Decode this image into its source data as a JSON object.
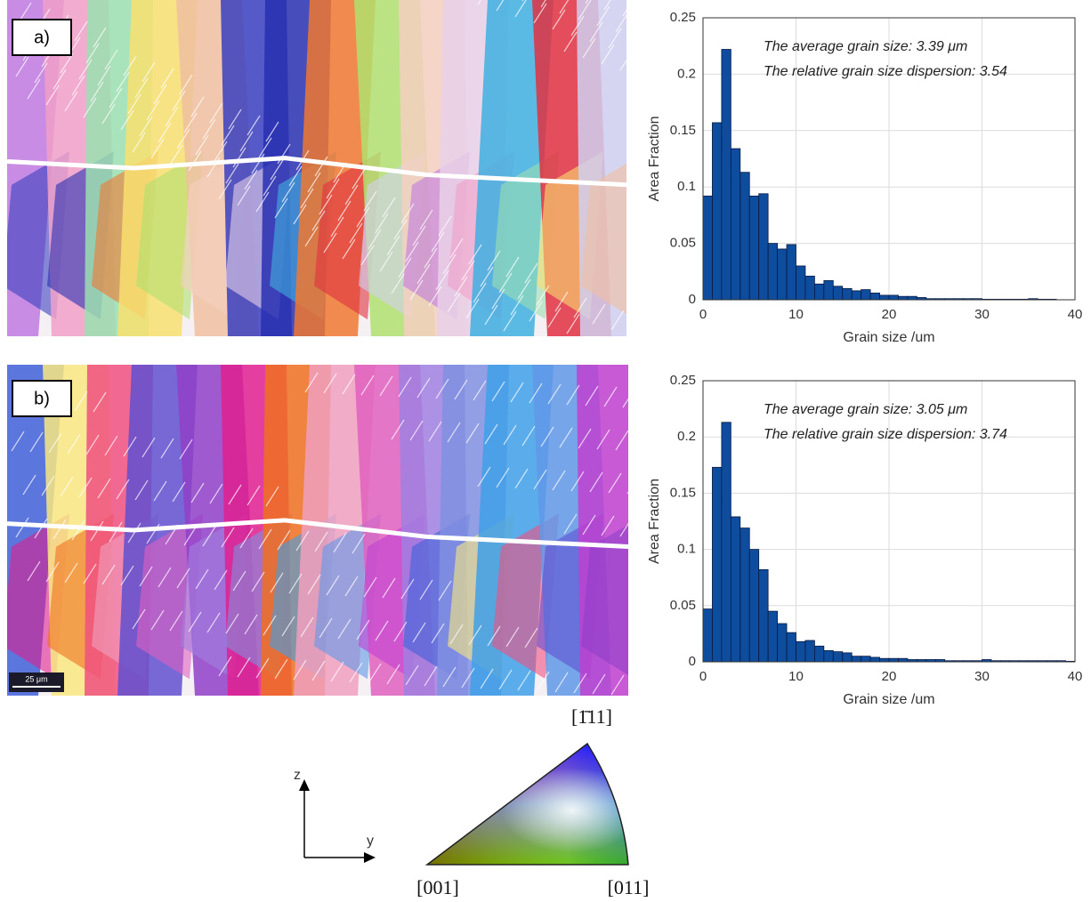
{
  "maps": [
    {
      "label": "a)"
    },
    {
      "label": "b)",
      "scale_bar": "25 μm"
    }
  ],
  "legend": {
    "corners": [
      "[001]",
      "[011]",
      "[1̄11]"
    ],
    "axes": [
      "z",
      "y"
    ]
  },
  "chart_data": [
    {
      "type": "histogram",
      "xlabel": "Grain size /um",
      "ylabel": "Area Fraction",
      "annotations": [
        "The average grain size: 3.39 μm",
        "The relative grain size dispersion: 3.54"
      ],
      "bins": [
        0,
        1,
        2,
        3,
        4,
        5,
        6,
        7,
        8,
        9,
        10,
        11,
        12,
        13,
        14,
        15,
        16,
        17,
        18,
        19,
        20,
        21,
        22,
        23,
        24,
        25,
        26,
        27,
        28,
        29,
        30,
        31,
        32,
        33,
        34,
        35,
        36,
        37,
        38,
        39,
        40
      ],
      "values": [
        0.092,
        0.157,
        0.222,
        0.134,
        0.113,
        0.092,
        0.094,
        0.05,
        0.045,
        0.049,
        0.03,
        0.021,
        0.014,
        0.017,
        0.012,
        0.01,
        0.008,
        0.009,
        0.006,
        0.004,
        0.004,
        0.003,
        0.003,
        0.002,
        0.001,
        0.001,
        0.001,
        0.001,
        0.001,
        0.001,
        0.0005,
        0.0005,
        0.0005,
        0.0005,
        0.0005,
        0.001,
        0.0005,
        0.0005,
        0,
        0
      ],
      "color": "#0e4c9e",
      "xlim": [
        0,
        40
      ],
      "xticks": [
        0,
        10,
        20,
        30,
        40
      ],
      "ylim": [
        0,
        0.25
      ],
      "yticks": [
        0,
        0.05,
        0.1,
        0.15,
        0.2,
        0.25
      ],
      "grid": true
    },
    {
      "type": "histogram",
      "xlabel": "Grain size /um",
      "ylabel": "Area Fraction",
      "annotations": [
        "The average grain size: 3.05 μm",
        "The relative grain size dispersion: 3.74"
      ],
      "bins": [
        0,
        1,
        2,
        3,
        4,
        5,
        6,
        7,
        8,
        9,
        10,
        11,
        12,
        13,
        14,
        15,
        16,
        17,
        18,
        19,
        20,
        21,
        22,
        23,
        24,
        25,
        26,
        27,
        28,
        29,
        30,
        31,
        32,
        33,
        34,
        35,
        36,
        37,
        38,
        39,
        40
      ],
      "values": [
        0.047,
        0.173,
        0.213,
        0.129,
        0.119,
        0.1,
        0.082,
        0.045,
        0.034,
        0.026,
        0.018,
        0.019,
        0.014,
        0.01,
        0.009,
        0.008,
        0.005,
        0.005,
        0.004,
        0.003,
        0.003,
        0.003,
        0.002,
        0.002,
        0.002,
        0.002,
        0.001,
        0.001,
        0.001,
        0.001,
        0.002,
        0.001,
        0.001,
        0.001,
        0.001,
        0.001,
        0.001,
        0.001,
        0.001,
        0.0005
      ],
      "color": "#0e4c9e",
      "xlim": [
        0,
        40
      ],
      "xticks": [
        0,
        10,
        20,
        30,
        40
      ],
      "ylim": [
        0,
        0.25
      ],
      "yticks": [
        0,
        0.05,
        0.1,
        0.15,
        0.2,
        0.25
      ],
      "grid": true
    }
  ]
}
